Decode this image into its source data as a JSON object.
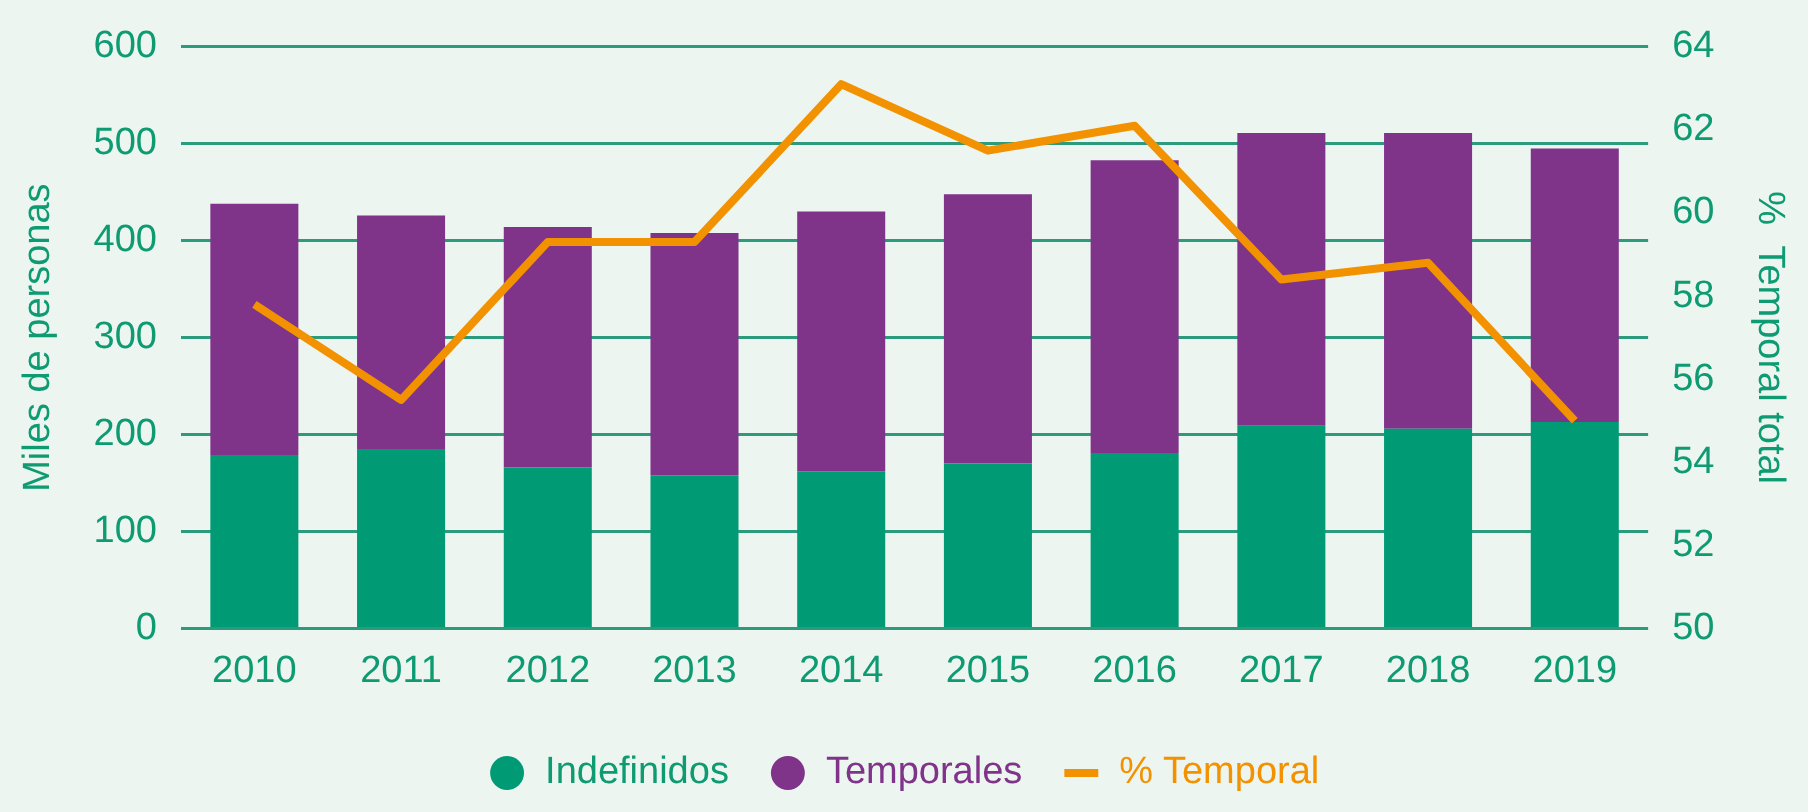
{
  "chart_data": {
    "type": "bar",
    "stacked": true,
    "ylabel": "Miles de personas",
    "y2label": "%  Temporal total",
    "categories": [
      "2010",
      "2011",
      "2012",
      "2013",
      "2014",
      "2015",
      "2016",
      "2017",
      "2018",
      "2019"
    ],
    "series": [
      {
        "name": "Indefinidos",
        "color": "#009a74",
        "values": [
          179,
          185,
          166,
          158,
          162,
          170,
          181,
          209,
          206,
          213
        ]
      },
      {
        "name": "Temporales",
        "color": "#7f3389",
        "values": [
          259,
          241,
          248,
          250,
          268,
          278,
          302,
          302,
          305,
          282
        ]
      },
      {
        "name": "% Temporal",
        "type": "line",
        "axis": "y2",
        "color": "#f39200",
        "values": [
          57.8,
          55.5,
          59.3,
          59.3,
          63.1,
          61.5,
          62.1,
          58.4,
          58.8,
          55.0
        ]
      }
    ],
    "ylim": [
      0,
      600
    ],
    "yticks": [
      0,
      100,
      200,
      300,
      400,
      500,
      600
    ],
    "y2lim": [
      50,
      64
    ],
    "y2ticks": [
      50,
      52,
      54,
      56,
      58,
      60,
      62,
      64
    ],
    "grid": "y",
    "legend": "bottom",
    "marker": "none",
    "line_style": "solid"
  }
}
